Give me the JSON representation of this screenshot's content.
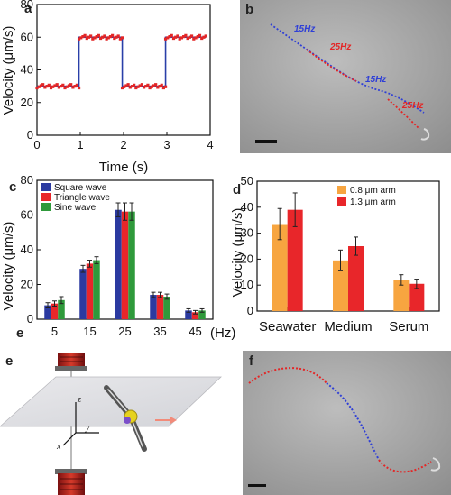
{
  "panels": {
    "a": "a",
    "b": "b",
    "c": "c",
    "d": "d",
    "e": "e",
    "f": "f"
  },
  "micrograph_b": {
    "labels": [
      "15Hz",
      "25Hz",
      "15Hz",
      "25Hz"
    ]
  },
  "chart_data": [
    {
      "panel": "a",
      "type": "line",
      "xlabel": "Time (s)",
      "ylabel": "Velocity (μm/s)",
      "xlim": [
        0,
        4
      ],
      "ylim": [
        0,
        80
      ],
      "xticks": [
        0,
        1,
        2,
        3,
        4
      ],
      "yticks": [
        0,
        20,
        40,
        60,
        80
      ],
      "series": [
        {
          "color": "#2a3fa8",
          "marker_color": "#e32626",
          "x": [
            0,
            0.97,
            0.97,
            1.97,
            1.97,
            2.97,
            2.97,
            3.9
          ],
          "y": [
            30,
            30,
            60,
            60,
            30,
            30,
            60,
            60
          ]
        }
      ]
    },
    {
      "panel": "c",
      "type": "bar",
      "xlabel": "(Hz)",
      "ylabel": "Velocity (μm/s)",
      "ylim": [
        0,
        80
      ],
      "yticks": [
        0,
        20,
        40,
        60,
        80
      ],
      "categories": [
        "5",
        "15",
        "25",
        "35",
        "45"
      ],
      "series": [
        {
          "name": "Square wave",
          "color": "#2b3aa0",
          "values": [
            8,
            29,
            63,
            14,
            5
          ],
          "errors": [
            1.5,
            2,
            4,
            1.5,
            1
          ]
        },
        {
          "name": "Triangle wave",
          "color": "#e8262a",
          "values": [
            9,
            32,
            62,
            14,
            4
          ],
          "errors": [
            1.5,
            2,
            5,
            1.5,
            1
          ]
        },
        {
          "name": "Sine wave",
          "color": "#2f9a3b",
          "values": [
            11,
            34,
            62,
            13,
            5
          ],
          "errors": [
            2,
            2,
            5,
            1.5,
            1
          ]
        }
      ]
    },
    {
      "panel": "d",
      "type": "bar",
      "ylabel": "Velocity (μm/s)",
      "ylim": [
        0,
        50
      ],
      "yticks": [
        0,
        10,
        20,
        30,
        40,
        50
      ],
      "categories": [
        "Seawater",
        "Medium",
        "Serum"
      ],
      "series": [
        {
          "name": "0.8 μm arm",
          "color": "#f7a540",
          "values": [
            33.5,
            19.5,
            12
          ],
          "errors": [
            6,
            4,
            2
          ]
        },
        {
          "name": "1.3 μm arm",
          "color": "#e8262a",
          "values": [
            39,
            25,
            10.5
          ],
          "errors": [
            6.5,
            3.5,
            1.8
          ]
        }
      ]
    }
  ],
  "panel_c_overlay": "e",
  "schematic_e": {
    "axes": [
      "z",
      "y",
      "x"
    ]
  }
}
